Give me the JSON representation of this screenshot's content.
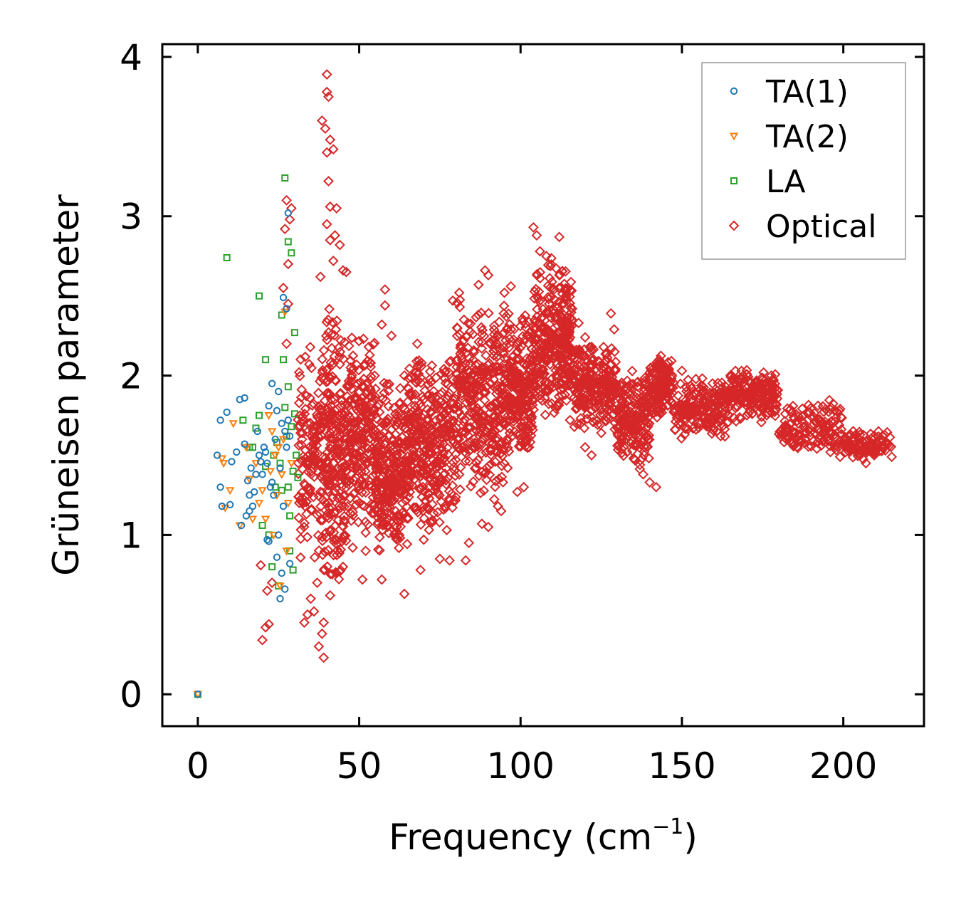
{
  "chart_data": {
    "type": "scatter",
    "xlabel": "Frequency (cm",
    "xlabel_sup": "−1",
    "xlabel_end": ")",
    "ylabel": "Grüneisen parameter",
    "xlim": [
      -11,
      225
    ],
    "ylim": [
      -0.2,
      4.08
    ],
    "xticks": [
      0,
      50,
      100,
      150,
      200
    ],
    "xtick_labels": [
      "0",
      "50",
      "100",
      "150",
      "200"
    ],
    "yticks": [
      0,
      1,
      2,
      3,
      4
    ],
    "ytick_labels": [
      "0",
      "1",
      "2",
      "3",
      "4"
    ],
    "legend_position": "top-right",
    "series": [
      {
        "name": "TA(1)",
        "color": "#1f77b4",
        "marker": "circle",
        "points": [
          [
            0,
            0
          ],
          [
            6,
            1.5
          ],
          [
            7,
            1.72
          ],
          [
            7,
            1.3
          ],
          [
            7.5,
            1.18
          ],
          [
            9,
            1.77
          ],
          [
            10,
            1.19
          ],
          [
            10.5,
            1.46
          ],
          [
            12,
            1.52
          ],
          [
            13,
            1.85
          ],
          [
            13.5,
            1.06
          ],
          [
            14.5,
            1.86
          ],
          [
            14.5,
            1.57
          ],
          [
            15,
            1.12
          ],
          [
            15.5,
            1.34
          ],
          [
            16,
            1.25
          ],
          [
            16,
            1.15
          ],
          [
            16.5,
            1.42
          ],
          [
            17,
            1.18
          ],
          [
            17.5,
            1.27
          ],
          [
            18,
            1.38
          ],
          [
            18.5,
            1.65
          ],
          [
            19,
            1.5
          ],
          [
            19.5,
            1.46
          ],
          [
            20,
            1.38
          ],
          [
            20.5,
            1.55
          ],
          [
            21,
            1.52
          ],
          [
            21.5,
            1.45
          ],
          [
            21.5,
            0.97
          ],
          [
            22,
            1.81
          ],
          [
            22,
            0.96
          ],
          [
            22.5,
            1.3
          ],
          [
            23,
            1.95
          ],
          [
            23,
            1.33
          ],
          [
            23.5,
            1.25
          ],
          [
            24,
            1.6
          ],
          [
            24.5,
            0.86
          ],
          [
            24.5,
            1.78
          ],
          [
            25,
            1.9
          ],
          [
            25,
            1.0
          ],
          [
            25.5,
            0.6
          ],
          [
            25.5,
            1.42
          ],
          [
            26,
            1.7
          ],
          [
            26,
            0.76
          ],
          [
            26.5,
            2.49
          ],
          [
            26.5,
            1.18
          ],
          [
            27,
            1.65
          ],
          [
            27,
            0.66
          ],
          [
            27.5,
            2.42
          ],
          [
            27.5,
            1.55
          ],
          [
            28,
            3.02
          ],
          [
            28,
            1.72
          ],
          [
            28.5,
            1.62
          ],
          [
            28.5,
            0.82
          ]
        ]
      },
      {
        "name": "TA(2)",
        "color": "#ff7f0e",
        "marker": "triangle-down",
        "points": [
          [
            0,
            0
          ],
          [
            7.5,
            1.48
          ],
          [
            8,
            1.45
          ],
          [
            8.5,
            1.17
          ],
          [
            10,
            1.28
          ],
          [
            11,
            1.7
          ],
          [
            13,
            1.06
          ],
          [
            15,
            1.55
          ],
          [
            16,
            1.35
          ],
          [
            17,
            1.1
          ],
          [
            18,
            1.45
          ],
          [
            19,
            1.2
          ],
          [
            20,
            1.28
          ],
          [
            21,
            1.1
          ],
          [
            22,
            1.75
          ],
          [
            22.5,
            1.4
          ],
          [
            23,
            1.65
          ],
          [
            23.5,
            1.0
          ],
          [
            24,
            1.5
          ],
          [
            24.5,
            1.25
          ],
          [
            25,
            1.55
          ],
          [
            25.5,
            0.68
          ],
          [
            26,
            1.38
          ],
          [
            26.5,
            1.6
          ],
          [
            27,
            2.4
          ],
          [
            27.5,
            0.9
          ],
          [
            28,
            1.2
          ],
          [
            29,
            1.45
          ]
        ]
      },
      {
        "name": "LA",
        "color": "#2ca02c",
        "marker": "square",
        "points": [
          [
            0,
            0
          ],
          [
            9,
            2.74
          ],
          [
            14,
            1.72
          ],
          [
            16,
            1.55
          ],
          [
            17,
            1.55
          ],
          [
            18,
            1.67
          ],
          [
            19,
            1.75
          ],
          [
            19,
            2.5
          ],
          [
            20,
            1.06
          ],
          [
            21,
            2.1
          ],
          [
            21,
            1.43
          ],
          [
            22,
            1.0
          ],
          [
            23,
            0.8
          ],
          [
            23.5,
            1.5
          ],
          [
            24,
            1.3
          ],
          [
            24.5,
            1.58
          ],
          [
            25,
            0.68
          ],
          [
            25.5,
            1.45
          ],
          [
            26,
            2.38
          ],
          [
            26,
            1.28
          ],
          [
            26.5,
            2.1
          ],
          [
            27,
            3.24
          ],
          [
            27,
            1.8
          ],
          [
            27.5,
            1.62
          ],
          [
            28,
            2.84
          ],
          [
            28,
            1.93
          ],
          [
            28,
            1.3
          ],
          [
            28.5,
            1.12
          ],
          [
            28.5,
            0.9
          ],
          [
            29,
            2.77
          ],
          [
            29,
            1.68
          ],
          [
            29.5,
            1.4
          ],
          [
            30,
            2.27
          ],
          [
            30,
            1.76
          ],
          [
            30.5,
            1.5
          ],
          [
            31,
            1.36
          ],
          [
            29.5,
            0.78
          ]
        ]
      },
      {
        "name": "Optical",
        "color": "#d62728",
        "marker": "diamond",
        "points": [
          [
            20,
            0.34
          ],
          [
            21,
            0.42
          ],
          [
            22,
            0.44
          ],
          [
            19.5,
            0.81
          ],
          [
            21.5,
            0.65
          ],
          [
            23,
            0.7
          ],
          [
            26.5,
            2.55
          ],
          [
            27,
            2.92
          ],
          [
            27.5,
            3.1
          ],
          [
            28,
            2.7
          ],
          [
            28.5,
            2.98
          ],
          [
            29,
            3.05
          ],
          [
            28,
            2.45
          ],
          [
            27.5,
            2.2
          ],
          [
            40,
            3.89
          ],
          [
            40,
            3.78
          ],
          [
            40.5,
            3.75
          ],
          [
            38.5,
            3.6
          ],
          [
            39.5,
            3.55
          ],
          [
            40,
            3.4
          ],
          [
            41,
            3.48
          ],
          [
            42,
            3.42
          ],
          [
            40.5,
            3.22
          ],
          [
            41,
            3.06
          ],
          [
            43,
            3.05
          ],
          [
            40,
            2.95
          ],
          [
            41,
            2.85
          ],
          [
            42.5,
            2.88
          ],
          [
            44,
            2.82
          ],
          [
            38,
            2.62
          ],
          [
            42,
            2.72
          ],
          [
            45,
            2.66
          ],
          [
            46,
            2.65
          ],
          [
            39,
            0.23
          ],
          [
            37.5,
            0.3
          ],
          [
            38.5,
            0.38
          ],
          [
            39,
            0.45
          ],
          [
            36,
            0.52
          ],
          [
            34,
            0.5
          ],
          [
            33,
            0.45
          ],
          [
            35,
            0.6
          ],
          [
            37,
            0.7
          ],
          [
            41,
            0.62
          ],
          [
            43,
            0.76
          ],
          [
            45,
            0.8
          ],
          [
            48,
            0.92
          ],
          [
            52,
            0.9
          ],
          [
            51,
            0.72
          ],
          [
            57,
            0.72
          ],
          [
            64,
            0.63
          ],
          [
            69,
            0.78
          ],
          [
            75,
            0.85
          ],
          [
            78,
            0.84
          ],
          [
            83,
            0.84
          ],
          [
            84,
            0.95
          ],
          [
            88,
            1.07
          ],
          [
            90,
            1.05
          ],
          [
            93,
            1.18
          ],
          [
            94,
            1.15
          ],
          [
            99,
            1.27
          ],
          [
            101,
            1.3
          ],
          [
            96,
            1.42
          ],
          [
            70,
            0.97
          ],
          [
            72,
            1.08
          ],
          [
            58,
            2.54
          ],
          [
            58,
            2.44
          ],
          [
            57,
            2.32
          ],
          [
            64,
            2.0
          ],
          [
            60,
            2.25
          ],
          [
            68,
            2.2
          ],
          [
            79,
            2.47
          ],
          [
            81,
            2.52
          ],
          [
            87,
            2.57
          ],
          [
            89,
            2.66
          ],
          [
            90,
            2.63
          ],
          [
            95,
            2.52
          ],
          [
            97,
            2.56
          ],
          [
            93,
            2.25
          ],
          [
            104,
            2.93
          ],
          [
            105,
            2.88
          ],
          [
            106,
            2.78
          ],
          [
            108,
            2.75
          ],
          [
            112,
            2.87
          ],
          [
            110,
            2.55
          ],
          [
            114,
            2.5
          ],
          [
            116,
            2.42
          ],
          [
            118,
            2.33
          ],
          [
            120,
            2.24
          ],
          [
            122,
            2.18
          ],
          [
            128,
            2.39
          ],
          [
            129,
            2.29
          ],
          [
            124,
            2.09
          ],
          [
            118,
            1.98
          ],
          [
            120,
            1.55
          ],
          [
            122,
            1.5
          ],
          [
            125,
            1.64
          ],
          [
            130,
            1.56
          ],
          [
            133,
            1.52
          ],
          [
            135,
            1.48
          ],
          [
            137,
            1.44
          ],
          [
            138,
            1.38
          ],
          [
            140,
            1.33
          ],
          [
            142,
            1.3
          ],
          [
            145,
            2.05
          ],
          [
            150,
            2.03
          ],
          [
            153,
            1.92
          ],
          [
            158,
            1.8
          ],
          [
            162,
            1.62
          ],
          [
            168,
            1.98
          ],
          [
            172,
            1.88
          ],
          [
            176,
            1.82
          ],
          [
            182,
            1.76
          ],
          [
            186,
            1.7
          ],
          [
            188,
            1.64
          ],
          [
            192,
            1.58
          ],
          [
            196,
            1.52
          ],
          [
            199,
            1.49
          ],
          [
            202,
            1.62
          ],
          [
            205,
            1.56
          ],
          [
            207,
            1.45
          ],
          [
            210,
            1.56
          ],
          [
            213,
            1.53
          ],
          [
            215,
            1.49
          ]
        ],
        "bands": [
          {
            "x": [
              31,
              38
            ],
            "y": [
              0.8,
              2.2
            ],
            "n": 130
          },
          {
            "x": [
              38,
              46
            ],
            "y": [
              0.55,
              2.5
            ],
            "n": 260
          },
          {
            "x": [
              46,
              55
            ],
            "y": [
              0.95,
              2.3
            ],
            "n": 230
          },
          {
            "x": [
              55,
              65
            ],
            "y": [
              0.8,
              2.0
            ],
            "n": 290
          },
          {
            "x": [
              65,
              80
            ],
            "y": [
              1.0,
              2.15
            ],
            "n": 360
          },
          {
            "x": [
              80,
              95
            ],
            "y": [
              1.2,
              2.5
            ],
            "n": 360
          },
          {
            "x": [
              95,
              104
            ],
            "y": [
              1.45,
              2.4
            ],
            "n": 250
          },
          {
            "x": [
              104,
              116
            ],
            "y": [
              1.7,
              2.75
            ],
            "n": 330
          },
          {
            "x": [
              116,
              130
            ],
            "y": [
              1.65,
              2.2
            ],
            "n": 260
          },
          {
            "x": [
              130,
              140
            ],
            "y": [
              1.4,
              2.05
            ],
            "n": 190
          },
          {
            "x": [
              140,
              147
            ],
            "y": [
              1.7,
              2.15
            ],
            "n": 150
          },
          {
            "x": [
              147,
              165
            ],
            "y": [
              1.6,
              2.0
            ],
            "n": 210
          },
          {
            "x": [
              165,
              180
            ],
            "y": [
              1.7,
              2.05
            ],
            "n": 190
          },
          {
            "x": [
              180,
              200
            ],
            "y": [
              1.5,
              1.85
            ],
            "n": 150
          },
          {
            "x": [
              200,
              215
            ],
            "y": [
              1.46,
              1.66
            ],
            "n": 110
          }
        ]
      }
    ]
  }
}
